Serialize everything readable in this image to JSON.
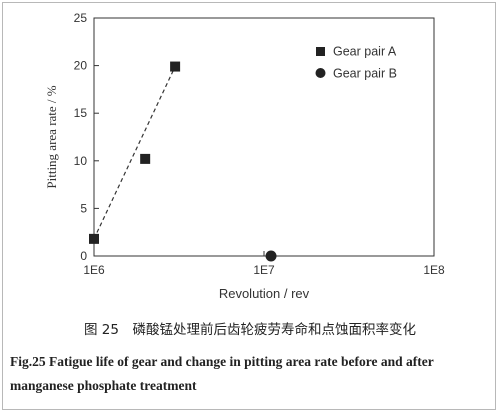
{
  "chart_data": {
    "type": "scatter",
    "xlabel": "Revolution / rev",
    "ylabel": "Pitting area rate / %",
    "x_scale": "log",
    "xlim": [
      1000000,
      100000000
    ],
    "ylim": [
      0,
      25
    ],
    "x_ticks": [
      "1E6",
      "1E7",
      "1E8"
    ],
    "y_ticks": [
      "0",
      "5",
      "10",
      "15",
      "20",
      "25"
    ],
    "legend_position": "top-right",
    "grid": false,
    "series": [
      {
        "name": "Gear pair A",
        "marker": "square",
        "points": [
          {
            "x": 1000000,
            "y": 1.8
          },
          {
            "x": 2000000,
            "y": 10.2
          },
          {
            "x": 3000000,
            "y": 19.9
          }
        ]
      },
      {
        "name": "Gear pair B",
        "marker": "circle",
        "points": [
          {
            "x": 11000000,
            "y": 0
          }
        ]
      }
    ],
    "trendline": {
      "style": "dashed",
      "from": {
        "x": 1000000,
        "y": 1.8
      },
      "to": {
        "x": 3000000,
        "y": 19.9
      }
    }
  },
  "captions": {
    "chinese": "图 25　磷酸锰处理前后齿轮疲劳寿命和点蚀面积率变化",
    "english": "Fig.25   Fatigue life of gear and change in pitting area rate before and after manganese phosphate treatment"
  }
}
